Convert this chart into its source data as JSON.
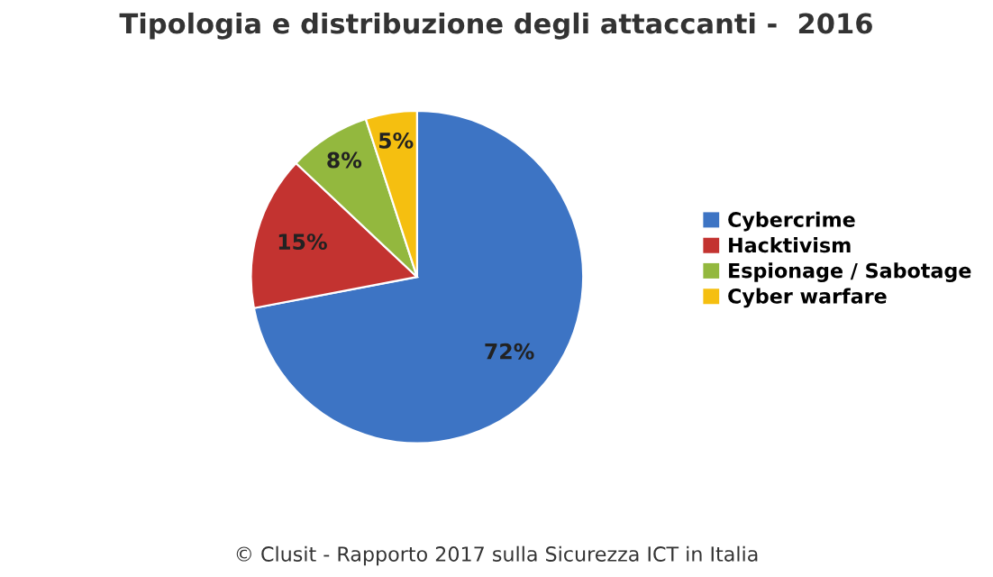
{
  "chart_data": {
    "type": "pie",
    "title": "Tipologia e distribuzione degli attaccanti -  2016",
    "categories": [
      "Cybercrime",
      "Hacktivism",
      "Espionage / Sabotage",
      "Cyber warfare"
    ],
    "values": [
      72,
      15,
      8,
      5
    ],
    "colors": [
      "#3d74c4",
      "#c33330",
      "#93b83e",
      "#f5bf10"
    ],
    "value_labels": [
      "72%",
      "15%",
      "8%",
      "5%"
    ],
    "legend": "right",
    "annotations": [
      "© Clusit - Rapporto 2017 sulla Sicurezza ICT in Italia"
    ]
  }
}
